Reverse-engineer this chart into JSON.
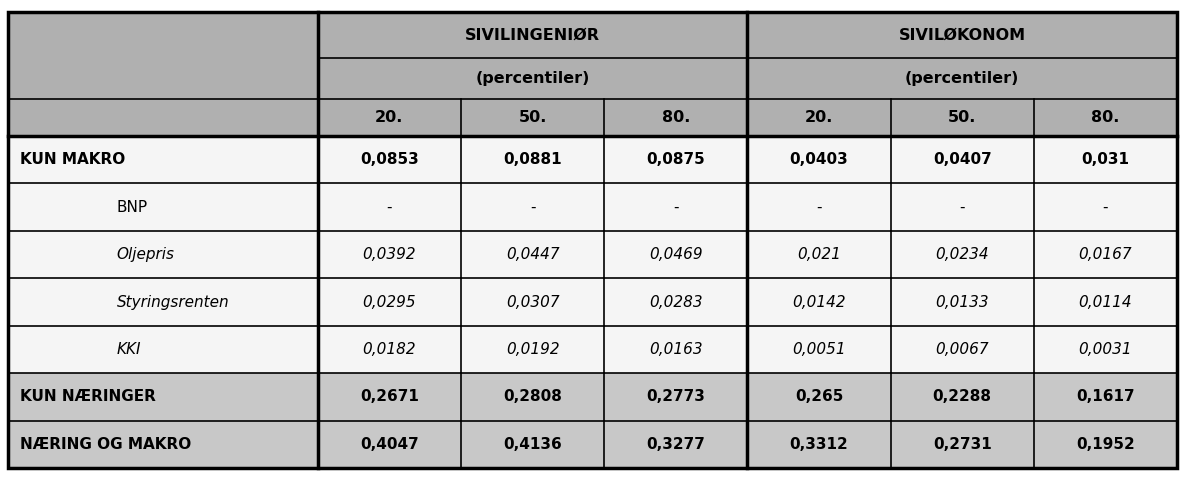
{
  "rows": [
    {
      "label": "KUN MAKRO",
      "values": [
        "0,0853",
        "0,0881",
        "0,0875",
        "0,0403",
        "0,0407",
        "0,031"
      ],
      "bold": true,
      "bg": "#ffffff",
      "italic": false,
      "indent": false
    },
    {
      "label": "BNP",
      "values": [
        "-",
        "-",
        "-",
        "-",
        "-",
        "-"
      ],
      "bold": false,
      "bg": "#ffffff",
      "italic": false,
      "indent": true
    },
    {
      "label": "Oljepris",
      "values": [
        "0,0392",
        "0,0447",
        "0,0469",
        "0,021",
        "0,0234",
        "0,0167"
      ],
      "bold": false,
      "bg": "#ffffff",
      "italic": true,
      "indent": true
    },
    {
      "label": "Styringsrenten",
      "values": [
        "0,0295",
        "0,0307",
        "0,0283",
        "0,0142",
        "0,0133",
        "0,0114"
      ],
      "bold": false,
      "bg": "#ffffff",
      "italic": true,
      "indent": true
    },
    {
      "label": "KKI",
      "values": [
        "0,0182",
        "0,0192",
        "0,0163",
        "0,0051",
        "0,0067",
        "0,0031"
      ],
      "bold": false,
      "bg": "#ffffff",
      "italic": true,
      "indent": true
    },
    {
      "label": "KUN NÆRINGER",
      "values": [
        "0,2671",
        "0,2808",
        "0,2773",
        "0,265",
        "0,2288",
        "0,1617"
      ],
      "bold": true,
      "bg": "#c8c8c8",
      "italic": false,
      "indent": false
    },
    {
      "label": "NÆRING OG MAKRO",
      "values": [
        "0,4047",
        "0,4136",
        "0,3277",
        "0,3312",
        "0,2731",
        "0,1952"
      ],
      "bold": true,
      "bg": "#c8c8c8",
      "italic": false,
      "indent": false
    }
  ],
  "header_bg": "#b0b0b0",
  "white_bg": "#f5f5f5",
  "gray_row_bg": "#c8c8c8",
  "border_color": "#000000",
  "fig_width": 11.85,
  "fig_height": 4.8,
  "dpi": 100
}
